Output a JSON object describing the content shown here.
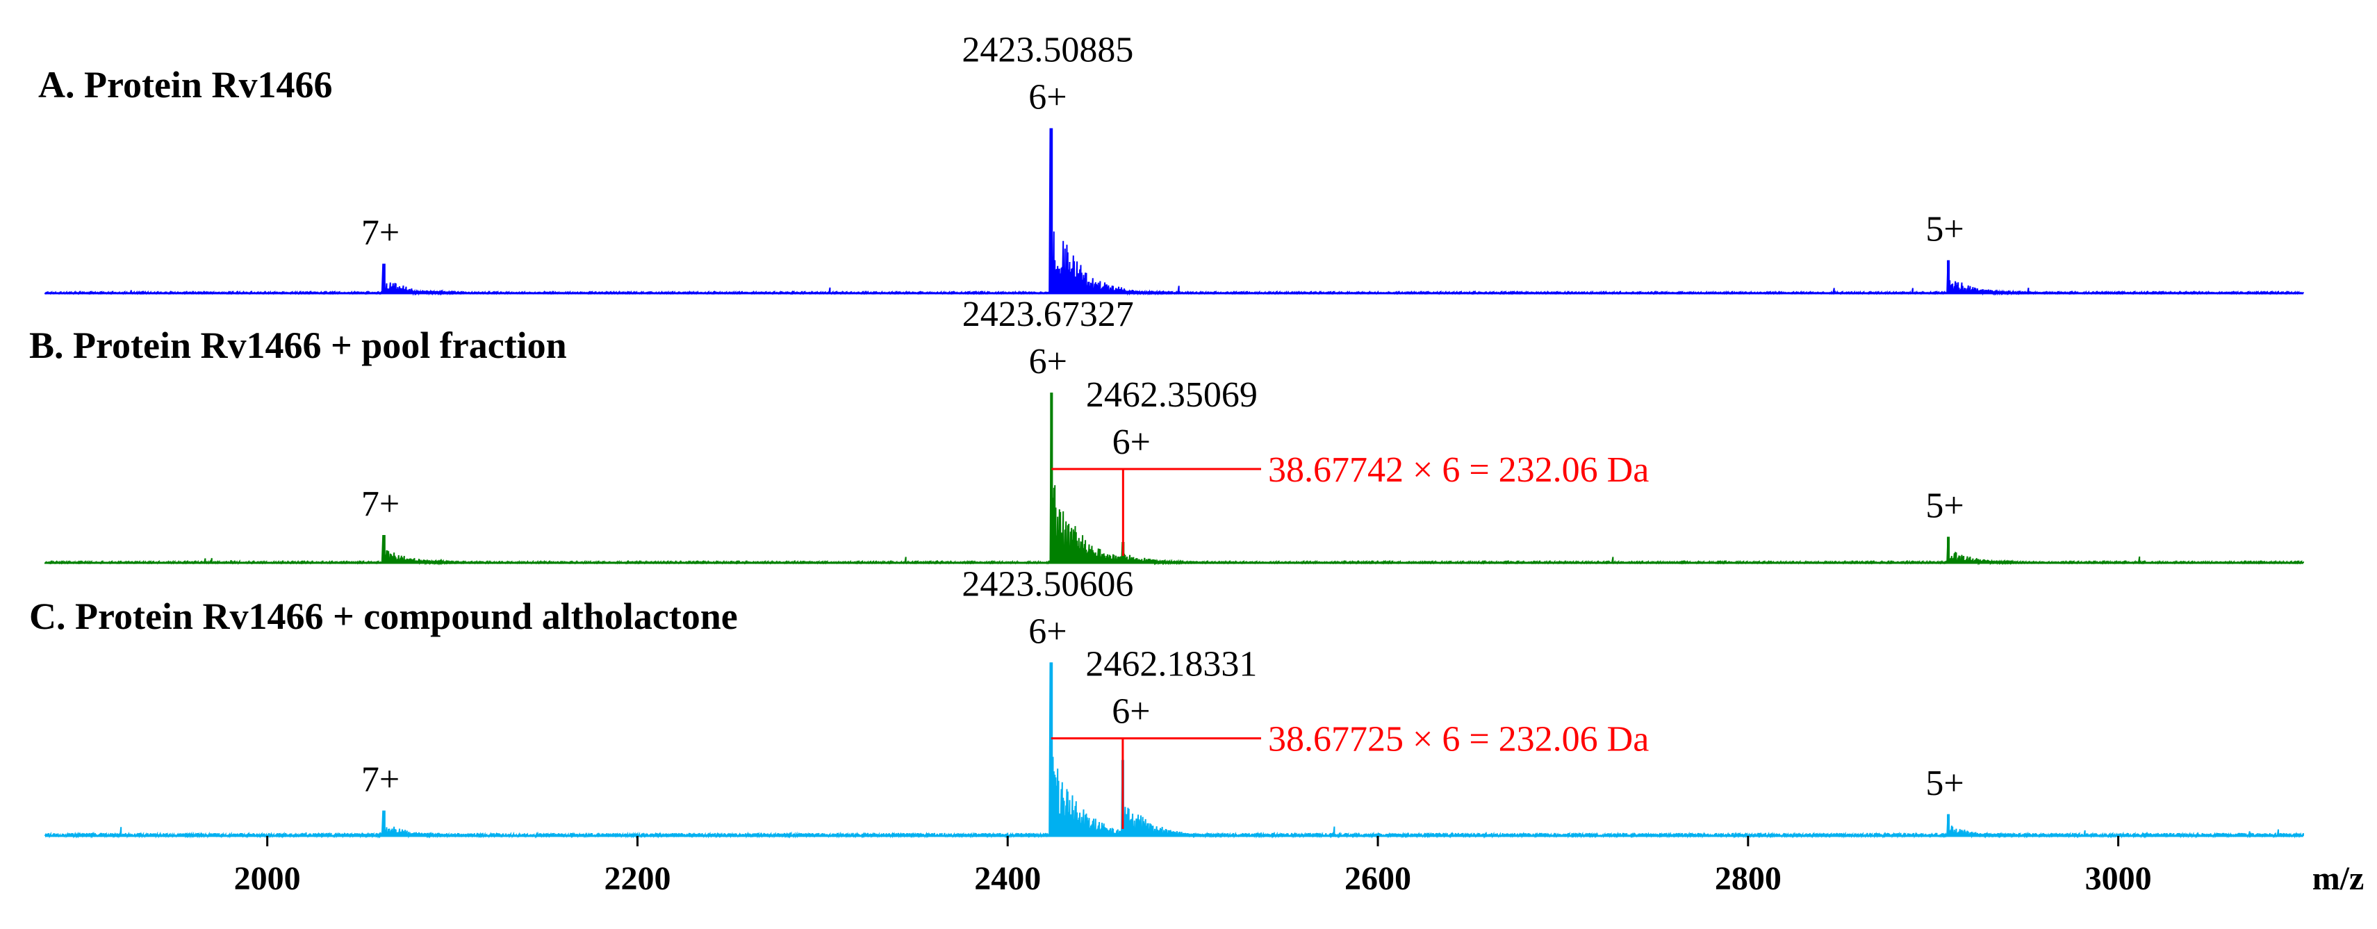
{
  "chart_data": {
    "type": "line",
    "xlabel": "m/z",
    "xlim": [
      1880,
      3100
    ],
    "x_ticks": [
      2000,
      2200,
      2400,
      2600,
      2800,
      3000
    ],
    "x_tick_labels": [
      "2000",
      "2200",
      "2400",
      "2600",
      "2800",
      "3000"
    ],
    "panels": [
      {
        "title": "A. Protein Rv1466",
        "color": "#0000ff",
        "noise": 0.006,
        "peaks": [
          {
            "x": 2063.0,
            "height": 0.17,
            "label": "7+"
          },
          {
            "x": 2423.50885,
            "height": 0.95,
            "label": "6+",
            "mz_label": "2423.50885"
          },
          {
            "x": 2908.2,
            "height": 0.19,
            "label": "5+"
          }
        ]
      },
      {
        "title": "B. Protein Rv1466 + pool fraction",
        "color": "#008000",
        "noise": 0.006,
        "peaks": [
          {
            "x": 2063.0,
            "height": 0.16,
            "label": "7+"
          },
          {
            "x": 2423.67327,
            "height": 0.98,
            "label": "6+",
            "mz_label": "2423.67327"
          },
          {
            "x": 2462.35069,
            "height": 0.12,
            "label": "6+",
            "mz_label": "2462.35069"
          },
          {
            "x": 2908.2,
            "height": 0.15,
            "label": "5+"
          }
        ],
        "mass_shift": {
          "from": 2423.67327,
          "to": 2462.35069,
          "text": "38.67742 × 6 = 232.06 Da"
        }
      },
      {
        "title": "C. Protein Rv1466 + compound altholactone",
        "color": "#00b0f0",
        "noise": 0.016,
        "peaks": [
          {
            "x": 2063.0,
            "height": 0.14,
            "label": "7+"
          },
          {
            "x": 2423.50606,
            "height": 0.96,
            "label": "6+",
            "mz_label": "2423.50606"
          },
          {
            "x": 2462.18331,
            "height": 0.42,
            "label": "6+",
            "mz_label": "2462.18331"
          },
          {
            "x": 2908.2,
            "height": 0.12,
            "label": "5+"
          }
        ],
        "mass_shift": {
          "from": 2423.50606,
          "to": 2462.18331,
          "text": "38.67725 × 6 = 232.06 Da"
        }
      }
    ]
  }
}
